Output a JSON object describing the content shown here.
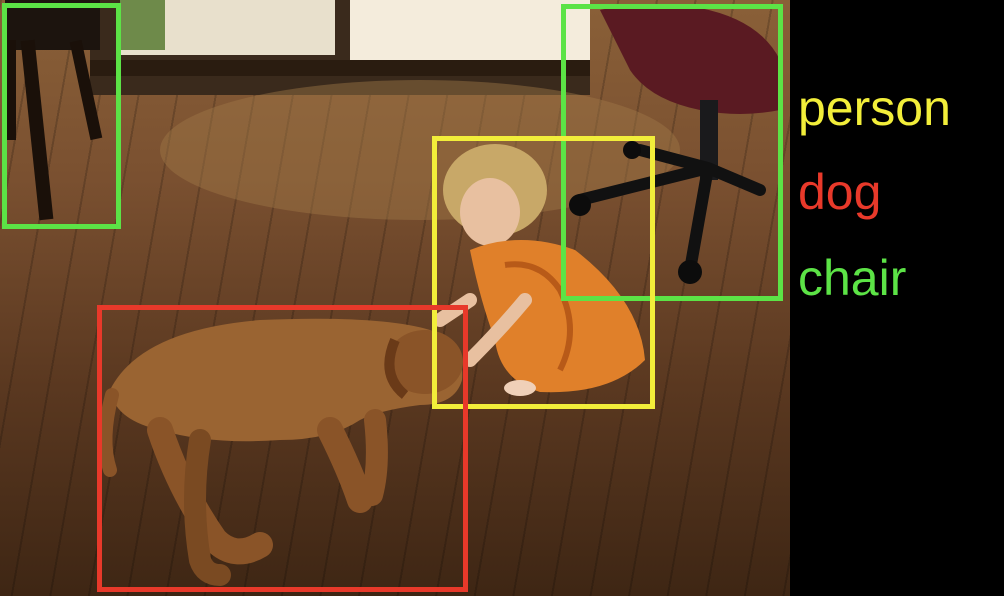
{
  "legend": [
    {
      "label": "person",
      "color": "#f2ee3a"
    },
    {
      "label": "dog",
      "color": "#e8392a"
    },
    {
      "label": "chair",
      "color": "#5ce346"
    }
  ],
  "detections": [
    {
      "class": "chair",
      "color": "#5ce346"
    },
    {
      "class": "chair",
      "color": "#5ce346"
    },
    {
      "class": "person",
      "color": "#f2ee3a"
    },
    {
      "class": "dog",
      "color": "#e8392a"
    }
  ],
  "scene": {
    "objects": [
      "girl-in-orange-dress",
      "sleeping-brown-dog",
      "office-chair",
      "wooden-chair-legs",
      "glass-door",
      "hardwood-floor"
    ]
  }
}
